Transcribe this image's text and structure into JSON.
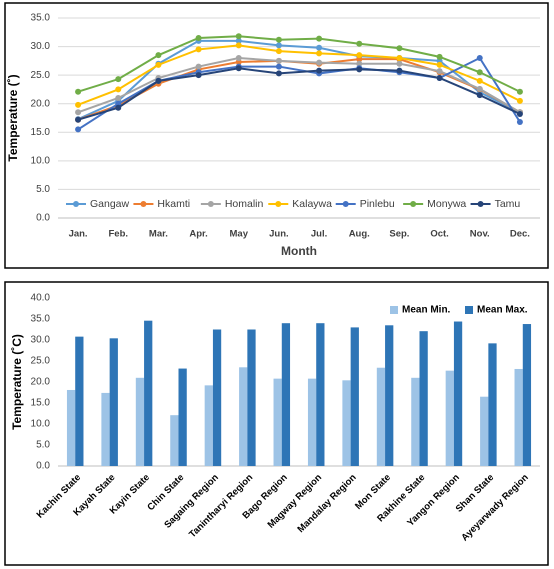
{
  "chart_data": [
    {
      "type": "line",
      "x_label": "Month",
      "y_label": "Temperature (˚)",
      "categories": [
        "Jan.",
        "Feb.",
        "Mar.",
        "Apr.",
        "May",
        "Jun.",
        "Jul.",
        "Aug.",
        "Sep.",
        "Oct.",
        "Nov.",
        "Dec."
      ],
      "ylim": [
        0,
        35
      ],
      "yticks": [
        {
          "value": 0,
          "label": "0.0"
        },
        {
          "value": 5,
          "label": "5.0"
        },
        {
          "value": 10,
          "label": "10.0"
        },
        {
          "value": 15,
          "label": "15.0"
        },
        {
          "value": 20,
          "label": "20.0"
        },
        {
          "value": 25,
          "label": "25.0"
        },
        {
          "value": 30,
          "label": "30.0"
        },
        {
          "value": 35,
          "label": "35.0"
        }
      ],
      "grid": true,
      "legend": "bottom",
      "series": [
        {
          "name": "Gangaw",
          "color": "#5b9bd5",
          "values": [
            17.3,
            20.5,
            27,
            31,
            31,
            30.2,
            29.8,
            28.3,
            28,
            27.5,
            22,
            18.5
          ]
        },
        {
          "name": "Hkamti",
          "color": "#ed7d31",
          "values": [
            17.2,
            19.7,
            23.5,
            26,
            27.3,
            27.5,
            27,
            27.8,
            27.8,
            25.5,
            22.5,
            18.5
          ]
        },
        {
          "name": "Homalin",
          "color": "#a5a5a5",
          "values": [
            18.5,
            21,
            24.5,
            26.5,
            28,
            27.5,
            27.2,
            27,
            27,
            25.7,
            22.6,
            18.5
          ]
        },
        {
          "name": "Kalaywa",
          "color": "#ffc000",
          "values": [
            19.8,
            22.5,
            26.8,
            29.5,
            30.2,
            29.2,
            28.8,
            28.5,
            28,
            26.8,
            24,
            20.5
          ]
        },
        {
          "name": "Pinlebu",
          "color": "#4472c4",
          "values": [
            15.5,
            20,
            24,
            25.5,
            26.5,
            26.5,
            25.3,
            26.2,
            25.5,
            24.5,
            28,
            16.8
          ]
        },
        {
          "name": "Monywa",
          "color": "#70ad47",
          "values": [
            22.1,
            24.3,
            28.5,
            31.5,
            31.8,
            31.2,
            31.4,
            30.5,
            29.7,
            28.2,
            25.5,
            22.1
          ]
        },
        {
          "name": "Tamu",
          "color": "#264478",
          "values": [
            17.2,
            19.3,
            24,
            25,
            26.2,
            25.3,
            25.8,
            26,
            25.8,
            24.5,
            21.5,
            18.2
          ]
        }
      ]
    },
    {
      "type": "bar",
      "y_label": "Temperature (˚C)",
      "categories": [
        "Kachin State",
        "Kayah State",
        "Kayin State",
        "Chin State",
        "Sagaing Region",
        "Tanintharyi Region",
        "Bago Region",
        "Magway Region",
        "Mandalay Region",
        "Mon State",
        "Rakhine State",
        "Yangon Region",
        "Shan State",
        "Ayeyarwady Region"
      ],
      "ylim": [
        0,
        40
      ],
      "yticks": [
        {
          "value": 0,
          "label": "0.0"
        },
        {
          "value": 5,
          "label": "5.0"
        },
        {
          "value": 10,
          "label": "10.0"
        },
        {
          "value": 15,
          "label": "15.0"
        },
        {
          "value": 20,
          "label": "20.0"
        },
        {
          "value": 25,
          "label": "25.0"
        },
        {
          "value": 30,
          "label": "30.0"
        },
        {
          "value": 35,
          "label": "35.0"
        },
        {
          "value": 40,
          "label": "40.0"
        }
      ],
      "grid": false,
      "legend": "top-right",
      "series": [
        {
          "name": "Mean Min.",
          "color": "#9dc3e6",
          "values": [
            18.1,
            17.4,
            21,
            12.1,
            19.2,
            23.5,
            20.8,
            20.8,
            20.4,
            23.4,
            21,
            22.7,
            16.5,
            23.1
          ]
        },
        {
          "name": "Mean Max.",
          "color": "#2e75b6",
          "values": [
            30.8,
            30.4,
            34.6,
            23.2,
            32.5,
            32.5,
            34,
            34,
            33,
            33.5,
            32.1,
            34.4,
            29.2,
            33.8
          ]
        }
      ]
    }
  ]
}
